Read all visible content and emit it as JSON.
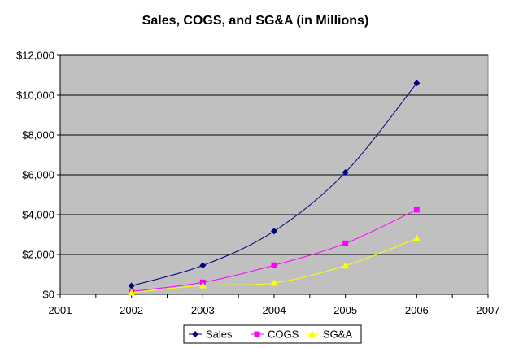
{
  "chart_data": {
    "type": "line",
    "title": "Sales, COGS, and SG&A (in Millions)",
    "xlabel": "",
    "ylabel": "",
    "xlim": [
      2001,
      2007
    ],
    "ylim": [
      0,
      12000
    ],
    "x_ticks": [
      "2001",
      "2002",
      "2003",
      "2004",
      "2005",
      "2006",
      "2007"
    ],
    "y_ticks": [
      "$0",
      "$2,000",
      "$4,000",
      "$6,000",
      "$8,000",
      "$10,000",
      "$12,000"
    ],
    "grid": "horizontal",
    "plot_background": "#c0c0c0",
    "legend_position": "bottom",
    "x": [
      2002,
      2003,
      2004,
      2005,
      2006
    ],
    "series": [
      {
        "name": "Sales",
        "values": [
          430,
          1450,
          3170,
          6120,
          10600
        ],
        "color": "#000080",
        "marker": "diamond"
      },
      {
        "name": "COGS",
        "values": [
          150,
          600,
          1460,
          2560,
          4250
        ],
        "color": "#ff00ff",
        "marker": "square"
      },
      {
        "name": "SG&A",
        "values": [
          80,
          450,
          570,
          1440,
          2800
        ],
        "color": "#ffff00",
        "marker": "triangle"
      }
    ]
  }
}
